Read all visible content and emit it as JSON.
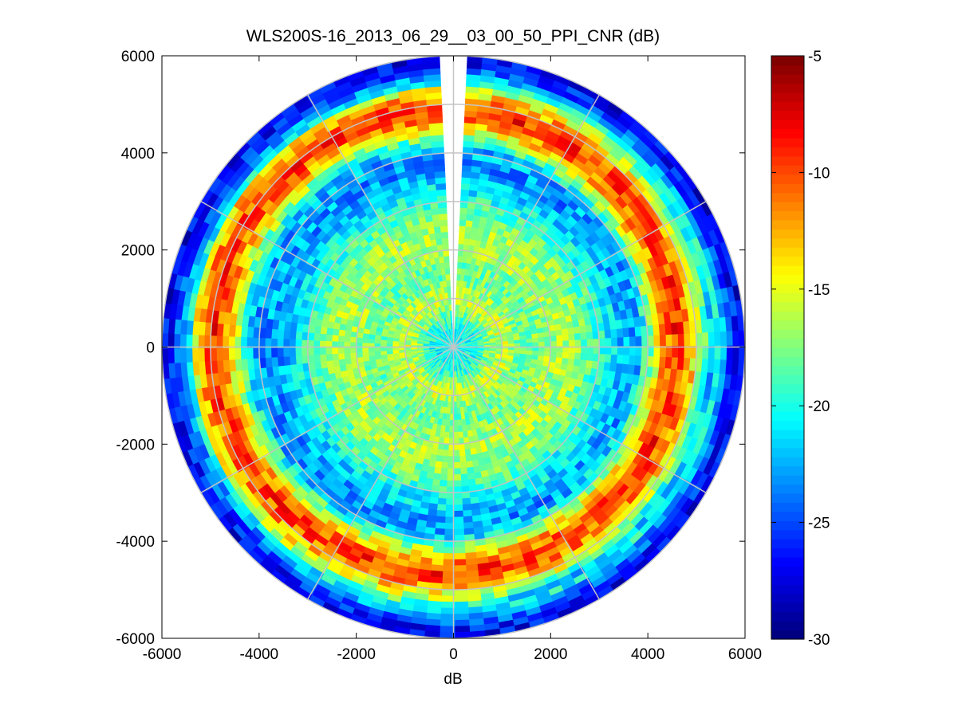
{
  "chart_data": {
    "type": "heatmap",
    "title": "WLS200S-16_2013_06_29__03_00_50_PPI_CNR (dB)",
    "xlabel": "dB",
    "ylabel": "",
    "xlim": [
      -6000,
      6000
    ],
    "ylim": [
      -6000,
      6000
    ],
    "xticks": [
      -6000,
      -4000,
      -2000,
      0,
      2000,
      4000,
      6000
    ],
    "yticks": [
      -6000,
      -4000,
      -2000,
      0,
      2000,
      4000,
      6000
    ],
    "colorbar": {
      "clim": [
        -30,
        -5
      ],
      "ticks": [
        -30,
        -25,
        -20,
        -15,
        -10,
        -5
      ],
      "colormap": "jet"
    },
    "polar_grid": {
      "ring_spacing": 1000,
      "max_range": 6000,
      "spoke_step_deg": 30
    },
    "data_gap": {
      "center_deg": 0,
      "half_width_deg": 4
    },
    "radial_profile": {
      "range": [
        0,
        250,
        500,
        750,
        1000,
        1250,
        1500,
        1750,
        2000,
        2250,
        2500,
        2750,
        3000,
        3250,
        3500,
        3750,
        4000,
        4250,
        4500,
        4750,
        5000,
        5250,
        5500,
        5750,
        6000
      ],
      "cnr": [
        -21,
        -20.5,
        -20,
        -17,
        -15.5,
        -17,
        -18,
        -17.5,
        -16.5,
        -16.5,
        -17,
        -18,
        -19.5,
        -21,
        -22.5,
        -23.5,
        -22,
        -17,
        -12,
        -9,
        -11.5,
        -16,
        -22,
        -26,
        -27.5
      ]
    }
  }
}
